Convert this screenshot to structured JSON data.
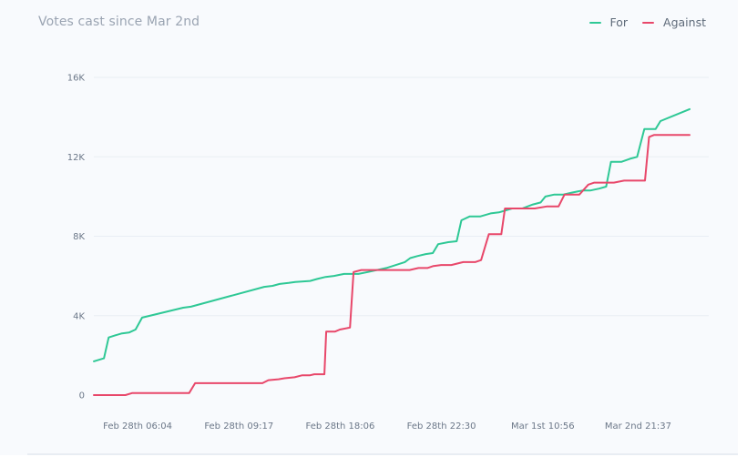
{
  "chart_data": {
    "type": "line",
    "title": "Votes cast since Mar 2nd",
    "xlabel": "",
    "ylabel": "",
    "ylim": [
      0,
      16000
    ],
    "yticks": [
      0,
      4000,
      8000,
      12000,
      16000
    ],
    "ytick_labels": [
      "0",
      "4K",
      "8K",
      "12K",
      "16K"
    ],
    "xticks": [
      {
        "label": "Feb 28th 06:04",
        "x": 0.02
      },
      {
        "label": "Feb 28th 09:17",
        "x": 0.19
      },
      {
        "label": "Feb 28th 18:06",
        "x": 0.36
      },
      {
        "label": "Feb 28th 22:30",
        "x": 0.53
      },
      {
        "label": "Mar 1st 10:56",
        "x": 0.7
      },
      {
        "label": "Mar 2nd 21:37",
        "x": 0.86
      }
    ],
    "x_range": [
      0,
      1
    ],
    "grid": true,
    "legend_position": "top-right",
    "series": [
      {
        "name": "For",
        "color": "#2ec895",
        "points": [
          [
            0,
            1700
          ],
          [
            0.017,
            1850
          ],
          [
            0.025,
            2900
          ],
          [
            0.035,
            3000
          ],
          [
            0.046,
            3100
          ],
          [
            0.059,
            3150
          ],
          [
            0.07,
            3300
          ],
          [
            0.081,
            3900
          ],
          [
            0.15,
            4400
          ],
          [
            0.163,
            4450
          ],
          [
            0.286,
            5450
          ],
          [
            0.3,
            5500
          ],
          [
            0.312,
            5600
          ],
          [
            0.327,
            5650
          ],
          [
            0.338,
            5700
          ],
          [
            0.363,
            5750
          ],
          [
            0.375,
            5850
          ],
          [
            0.389,
            5950
          ],
          [
            0.403,
            6000
          ],
          [
            0.42,
            6100
          ],
          [
            0.444,
            6100
          ],
          [
            0.46,
            6200
          ],
          [
            0.491,
            6400
          ],
          [
            0.522,
            6700
          ],
          [
            0.531,
            6900
          ],
          [
            0.543,
            7000
          ],
          [
            0.557,
            7100
          ],
          [
            0.569,
            7150
          ],
          [
            0.578,
            7600
          ],
          [
            0.595,
            7700
          ],
          [
            0.609,
            7750
          ],
          [
            0.617,
            8800
          ],
          [
            0.631,
            9000
          ],
          [
            0.649,
            9000
          ],
          [
            0.666,
            9150
          ],
          [
            0.68,
            9200
          ],
          [
            0.702,
            9400
          ],
          [
            0.719,
            9400
          ],
          [
            0.737,
            9600
          ],
          [
            0.75,
            9700
          ],
          [
            0.758,
            10000
          ],
          [
            0.773,
            10100
          ],
          [
            0.788,
            10100
          ],
          [
            0.803,
            10200
          ],
          [
            0.82,
            10300
          ],
          [
            0.833,
            10300
          ],
          [
            0.848,
            10400
          ],
          [
            0.86,
            10500
          ],
          [
            0.868,
            11750
          ],
          [
            0.886,
            11750
          ],
          [
            0.9,
            11900
          ],
          [
            0.912,
            12000
          ],
          [
            0.924,
            13400
          ],
          [
            0.943,
            13400
          ],
          [
            0.951,
            13800
          ],
          [
            1.0,
            14400
          ]
        ]
      },
      {
        "name": "Against",
        "color": "#e8476a",
        "points": [
          [
            0,
            0
          ],
          [
            0.053,
            0
          ],
          [
            0.064,
            100
          ],
          [
            0.16,
            100
          ],
          [
            0.17,
            600
          ],
          [
            0.283,
            600
          ],
          [
            0.293,
            750
          ],
          [
            0.31,
            800
          ],
          [
            0.32,
            850
          ],
          [
            0.337,
            900
          ],
          [
            0.35,
            1000
          ],
          [
            0.363,
            1000
          ],
          [
            0.37,
            1050
          ],
          [
            0.387,
            1050
          ],
          [
            0.39,
            3200
          ],
          [
            0.405,
            3200
          ],
          [
            0.413,
            3300
          ],
          [
            0.43,
            3400
          ],
          [
            0.436,
            6200
          ],
          [
            0.449,
            6300
          ],
          [
            0.462,
            6300
          ],
          [
            0.53,
            6300
          ],
          [
            0.545,
            6400
          ],
          [
            0.56,
            6400
          ],
          [
            0.57,
            6500
          ],
          [
            0.583,
            6550
          ],
          [
            0.6,
            6550
          ],
          [
            0.62,
            6700
          ],
          [
            0.64,
            6700
          ],
          [
            0.65,
            6800
          ],
          [
            0.663,
            8100
          ],
          [
            0.684,
            8100
          ],
          [
            0.69,
            9400
          ],
          [
            0.74,
            9400
          ],
          [
            0.76,
            9500
          ],
          [
            0.78,
            9500
          ],
          [
            0.79,
            10100
          ],
          [
            0.8,
            10100
          ],
          [
            0.815,
            10100
          ],
          [
            0.83,
            10600
          ],
          [
            0.84,
            10700
          ],
          [
            0.873,
            10700
          ],
          [
            0.89,
            10800
          ],
          [
            0.925,
            10800
          ],
          [
            0.932,
            13000
          ],
          [
            0.94,
            13100
          ],
          [
            1.0,
            13100
          ]
        ]
      }
    ]
  }
}
